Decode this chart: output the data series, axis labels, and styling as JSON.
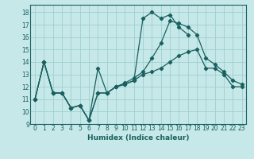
{
  "xlabel": "Humidex (Indice chaleur)",
  "background_color": "#c6e8e8",
  "grid_color": "#9fcfcf",
  "line_color": "#1a6060",
  "xlim": [
    -0.5,
    23.5
  ],
  "ylim": [
    9,
    18.6
  ],
  "xticks": [
    0,
    1,
    2,
    3,
    4,
    5,
    6,
    7,
    8,
    9,
    10,
    11,
    12,
    13,
    14,
    15,
    16,
    17,
    18,
    19,
    20,
    21,
    22,
    23
  ],
  "yticks": [
    9,
    10,
    11,
    12,
    13,
    14,
    15,
    16,
    17,
    18
  ],
  "series": [
    [
      11.0,
      14.0,
      11.5,
      11.5,
      10.3,
      10.5,
      9.3,
      11.5,
      11.5,
      12.0,
      12.2,
      12.5,
      17.5,
      18.0,
      17.5,
      17.8,
      16.8,
      16.2,
      null,
      null,
      null,
      null,
      null,
      null
    ],
    [
      11.0,
      14.0,
      11.5,
      11.5,
      10.3,
      10.5,
      9.3,
      11.5,
      11.5,
      12.0,
      12.3,
      12.7,
      13.2,
      14.3,
      15.5,
      17.3,
      17.1,
      16.8,
      16.2,
      14.3,
      13.8,
      13.2,
      12.5,
      12.2
    ],
    [
      11.0,
      14.0,
      11.5,
      11.5,
      10.3,
      10.5,
      9.3,
      13.5,
      11.5,
      12.0,
      12.2,
      12.5,
      13.0,
      13.2,
      13.5,
      14.0,
      14.5,
      14.8,
      15.0,
      13.5,
      13.5,
      13.0,
      12.0,
      12.0
    ]
  ]
}
